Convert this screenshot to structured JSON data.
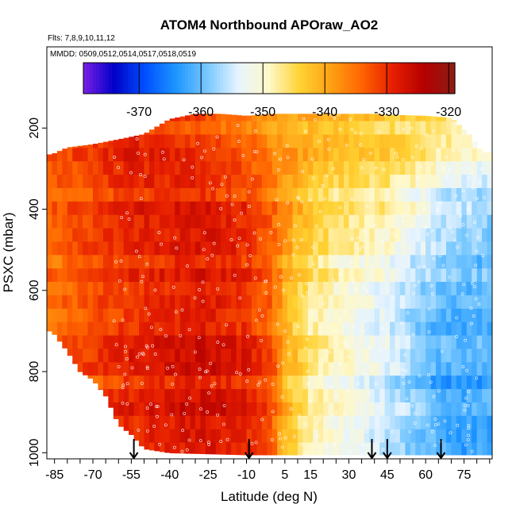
{
  "chart_data": {
    "type": "heatmap",
    "title": "ATOM4 Northbound APOraw_AO2",
    "subtitle": "Flts: 7,8,9,10,11,12",
    "mmdd_label": "MMDD: 0509,0512,0514,0517,0518,0519",
    "xlabel": "Latitude (deg N)",
    "ylabel": "PSXC (mbar)",
    "xlim": [
      -88,
      86
    ],
    "ylim": [
      1015,
      0
    ],
    "x_ticks": [
      -85,
      -70,
      -55,
      -40,
      -25,
      -10,
      5,
      15,
      30,
      45,
      60,
      75
    ],
    "x_minor_step": 5,
    "y_ticks": [
      200,
      400,
      600,
      800,
      1000
    ],
    "colorbar": {
      "range": [
        -379,
        -319
      ],
      "ticks": [
        -370,
        -360,
        -350,
        -340,
        -330,
        -320
      ],
      "colors": [
        "#7a1fe6",
        "#0000c8",
        "#0050ff",
        "#1e96ff",
        "#78c8ff",
        "#e6f4ff",
        "#fff8c8",
        "#ffd232",
        "#ffa014",
        "#ff6400",
        "#e61e00",
        "#b40000",
        "#8c1e14"
      ]
    },
    "profile_arrows_latitude": [
      -54,
      -9,
      39,
      45,
      66
    ],
    "profile_top_pressure": [
      [
        -86,
        265
      ],
      [
        -80,
        248
      ],
      [
        -70,
        240
      ],
      [
        -60,
        228
      ],
      [
        -50,
        215
      ],
      [
        -40,
        178
      ],
      [
        -30,
        165
      ],
      [
        -20,
        165
      ],
      [
        -10,
        170
      ],
      [
        0,
        165
      ],
      [
        10,
        165
      ],
      [
        20,
        165
      ],
      [
        30,
        165
      ],
      [
        40,
        165
      ],
      [
        50,
        168
      ],
      [
        60,
        170
      ],
      [
        70,
        175
      ],
      [
        77,
        215
      ],
      [
        82,
        260
      ]
    ],
    "profile_bottom_pressure": [
      [
        -86,
        700
      ],
      [
        -80,
        750
      ],
      [
        -75,
        800
      ],
      [
        -70,
        820
      ],
      [
        -65,
        860
      ],
      [
        -60,
        930
      ],
      [
        -55,
        955
      ],
      [
        -50,
        990
      ],
      [
        -40,
        1000
      ],
      [
        -10,
        1005
      ],
      [
        0,
        1005
      ],
      [
        20,
        1005
      ],
      [
        40,
        1005
      ],
      [
        60,
        1005
      ],
      [
        70,
        1005
      ],
      [
        82,
        1005
      ]
    ],
    "field_anchor_latitudes": [
      -88,
      -55,
      -25,
      -10,
      0,
      5,
      15,
      25,
      35,
      45,
      55,
      65,
      75,
      86
    ],
    "field_anchor_pressures": [
      200,
      400,
      600,
      800,
      1000
    ],
    "field_values": [
      [
        -335,
        -335,
        -335,
        -335,
        -335
      ],
      [
        -330,
        -330,
        -330,
        -329,
        -329
      ],
      [
        -333,
        -329,
        -328,
        -327,
        -326
      ],
      [
        -336,
        -331,
        -330,
        -329,
        -328
      ],
      [
        -339,
        -335,
        -334,
        -333,
        -332
      ],
      [
        -340,
        -339,
        -340,
        -341,
        -341
      ],
      [
        -341,
        -344,
        -346,
        -347,
        -347
      ],
      [
        -342,
        -347,
        -349,
        -350,
        -350
      ],
      [
        -343,
        -348,
        -351,
        -352,
        -352
      ],
      [
        -344,
        -349,
        -353,
        -355,
        -355
      ],
      [
        -345,
        -352,
        -356,
        -358,
        -358
      ],
      [
        -346,
        -356,
        -359,
        -362,
        -360
      ],
      [
        -348,
        -358,
        -360,
        -362,
        -362
      ],
      [
        -350,
        -359,
        -360,
        -361,
        -361
      ]
    ]
  }
}
